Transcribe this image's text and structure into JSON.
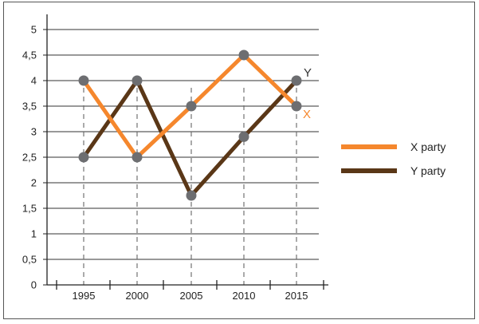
{
  "chart_data": {
    "type": "line",
    "title": "",
    "xlabel": "",
    "ylabel": "",
    "x": [
      "1995",
      "2000",
      "2005",
      "2010",
      "2015"
    ],
    "y_ticks": [
      "0",
      "0,5",
      "1",
      "1,5",
      "2",
      "2,5",
      "3",
      "3,5",
      "4",
      "4,5",
      "5"
    ],
    "ylim": [
      0,
      5
    ],
    "grid": "horizontal lines plus dashed vertical drop lines",
    "legend_position": "right",
    "series": [
      {
        "name": "X party",
        "end_label": "X",
        "color": "#f5872d",
        "values": [
          4,
          2.5,
          3.5,
          4.5,
          3.5
        ]
      },
      {
        "name": "Y party",
        "end_label": "Y",
        "color": "#5a3717",
        "values": [
          2.5,
          4,
          1.75,
          2.9,
          4
        ]
      }
    ],
    "point_color": "#6d6e71"
  }
}
